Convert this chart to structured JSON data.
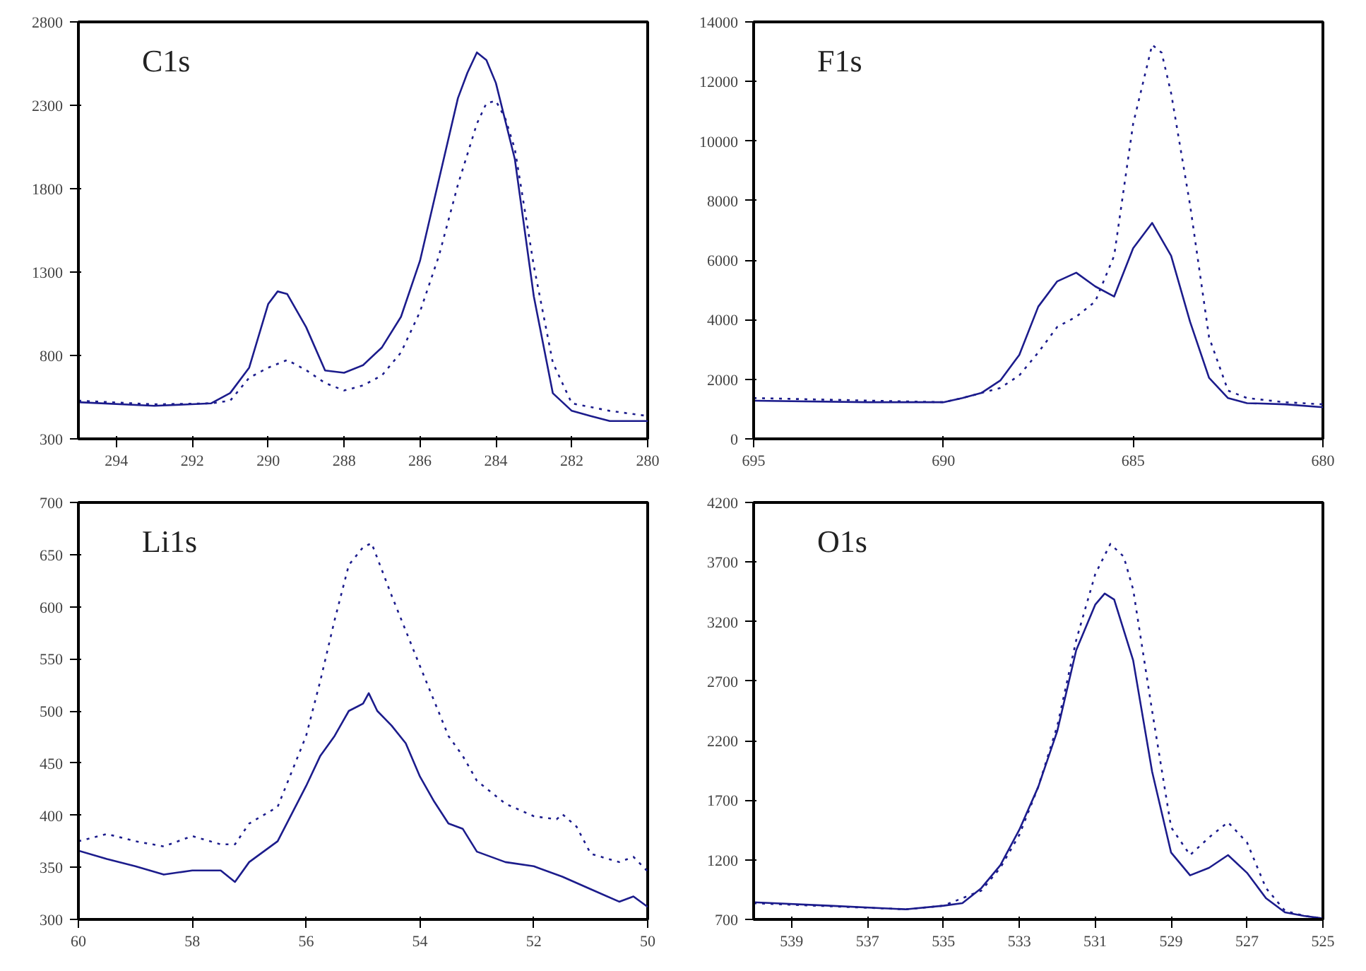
{
  "chart_data": [
    {
      "type": "line",
      "annotations": [
        "C1s"
      ],
      "xlim": [
        295,
        280
      ],
      "xticks": [
        294,
        292,
        290,
        288,
        286,
        284,
        282,
        280
      ],
      "ylim": [
        300,
        2800
      ],
      "yticks": [
        300,
        800,
        1300,
        1800,
        2300,
        2800
      ],
      "series": [
        {
          "color": "#1c1c8c",
          "line_style": "solid",
          "x": [
            295,
            293,
            291.5,
            291,
            290.5,
            290,
            289.75,
            289.5,
            289,
            288.5,
            288,
            287.5,
            287,
            286.5,
            286,
            285.5,
            285,
            284.75,
            284.5,
            284.25,
            284,
            283.5,
            283,
            282.5,
            282,
            281.5,
            281,
            280
          ],
          "values": [
            520,
            498,
            513,
            575,
            727,
            1108,
            1184,
            1169,
            970,
            710,
            696,
            742,
            849,
            1032,
            1367,
            1855,
            2343,
            2495,
            2617,
            2571,
            2434,
            1977,
            1154,
            574,
            468,
            437,
            407,
            407
          ]
        },
        {
          "color": "#1c1c8c",
          "line_style": "dotted",
          "x": [
            295,
            293,
            291.5,
            291,
            290.5,
            290,
            289.5,
            289,
            288.5,
            288,
            287.5,
            287,
            286.5,
            286,
            285.5,
            285,
            284.5,
            284.25,
            284,
            283.75,
            283.5,
            283,
            282.5,
            282,
            281,
            280
          ],
          "values": [
            529,
            507,
            513,
            529,
            666,
            727,
            773,
            712,
            635,
            590,
            620,
            681,
            818,
            1062,
            1398,
            1824,
            2190,
            2312,
            2327,
            2220,
            2038,
            1337,
            757,
            513,
            468,
            437
          ]
        }
      ]
    },
    {
      "type": "line",
      "annotations": [
        "F1s"
      ],
      "xlim": [
        695,
        680
      ],
      "xticks": [
        695,
        690,
        685,
        680
      ],
      "ylim": [
        0,
        14000
      ],
      "yticks": [
        0,
        2000,
        4000,
        6000,
        8000,
        10000,
        12000,
        14000
      ],
      "series": [
        {
          "color": "#1c1c8c",
          "line_style": "solid",
          "x": [
            695,
            692,
            690,
            689.5,
            689,
            688.5,
            688,
            687.5,
            687,
            686.5,
            686,
            685.5,
            685,
            684.5,
            684,
            683.5,
            683,
            682.5,
            682,
            681,
            680
          ],
          "values": [
            1280,
            1230,
            1230,
            1370,
            1540,
            1960,
            2820,
            4440,
            5290,
            5580,
            5120,
            4780,
            6400,
            7250,
            6150,
            3930,
            2050,
            1370,
            1200,
            1160,
            1060
          ]
        },
        {
          "color": "#1c1c8c",
          "line_style": "dotted",
          "x": [
            695,
            690,
            689.5,
            689,
            688.5,
            688,
            687.5,
            687,
            686.5,
            686,
            685.5,
            685,
            684.5,
            684.25,
            684,
            683.5,
            683,
            682.5,
            682,
            681,
            680
          ],
          "values": [
            1370,
            1230,
            1370,
            1540,
            1710,
            2130,
            2900,
            3760,
            4100,
            4610,
            6150,
            10580,
            13230,
            12970,
            11610,
            7850,
            3410,
            1620,
            1370,
            1230,
            1160
          ]
        }
      ]
    },
    {
      "type": "line",
      "annotations": [
        "Li1s"
      ],
      "xlim": [
        60,
        50
      ],
      "xticks": [
        60,
        58,
        56,
        54,
        52,
        50
      ],
      "ylim": [
        300,
        700
      ],
      "yticks": [
        300,
        350,
        400,
        450,
        500,
        550,
        600,
        650,
        700
      ],
      "series": [
        {
          "color": "#1c1c8c",
          "line_style": "solid",
          "x": [
            60,
            59.5,
            59,
            58.5,
            58,
            57.5,
            57.25,
            57,
            56.5,
            56,
            55.75,
            55.5,
            55.25,
            55,
            54.9,
            54.75,
            54.5,
            54.25,
            54,
            53.75,
            53.5,
            53.25,
            53,
            52.5,
            52,
            51.5,
            51,
            50.5,
            50.25,
            50
          ],
          "values": [
            366,
            358,
            351,
            343,
            347,
            347,
            336,
            355,
            375,
            428,
            457,
            476,
            500,
            507,
            517,
            500,
            486,
            469,
            437,
            413,
            392,
            387,
            365,
            355,
            351,
            341,
            329,
            317,
            322,
            312
          ]
        },
        {
          "color": "#1c1c8c",
          "line_style": "dotted",
          "x": [
            60,
            59.5,
            59,
            58.5,
            58,
            57.5,
            57.25,
            57,
            56.5,
            56,
            55.75,
            55.5,
            55.25,
            55,
            54.85,
            54.5,
            54,
            53.5,
            53.25,
            53,
            52.5,
            52,
            51.6,
            51.5,
            51.25,
            51,
            50.5,
            50.25,
            50
          ],
          "values": [
            375,
            382,
            375,
            370,
            380,
            372,
            372,
            392,
            408,
            476,
            529,
            587,
            640,
            657,
            661,
            611,
            543,
            476,
            457,
            433,
            411,
            399,
            396,
            401,
            389,
            363,
            355,
            360,
            346
          ]
        }
      ]
    },
    {
      "type": "line",
      "annotations": [
        "O1s"
      ],
      "xlim": [
        540,
        525
      ],
      "xticks": [
        539,
        537,
        535,
        533,
        531,
        529,
        527,
        525
      ],
      "ylim": [
        700,
        4200
      ],
      "yticks": [
        700,
        1200,
        1700,
        2200,
        2700,
        3200,
        3700,
        4200
      ],
      "series": [
        {
          "color": "#1c1c8c",
          "line_style": "solid",
          "x": [
            540,
            538,
            536,
            535,
            534.5,
            534,
            533.5,
            533,
            532.5,
            532,
            531.5,
            531,
            530.75,
            530.5,
            530,
            529.5,
            529,
            528.5,
            528,
            527.5,
            527,
            526.5,
            526,
            525.5,
            525
          ],
          "values": [
            844,
            815,
            785,
            815,
            836,
            963,
            1155,
            1452,
            1813,
            2280,
            2960,
            3342,
            3436,
            3385,
            2875,
            1940,
            1261,
            1070,
            1133,
            1240,
            1091,
            878,
            759,
            730,
            708
          ]
        },
        {
          "color": "#1c1c8c",
          "line_style": "dotted",
          "x": [
            540,
            536,
            535,
            534,
            533.5,
            533,
            532.5,
            532,
            531.5,
            531,
            530.6,
            530.25,
            530,
            529.5,
            529,
            528.5,
            528,
            527.5,
            527,
            526.5,
            526,
            525.5,
            525
          ],
          "values": [
            836,
            785,
            815,
            942,
            1133,
            1409,
            1813,
            2323,
            3045,
            3597,
            3852,
            3746,
            3470,
            2450,
            1473,
            1240,
            1388,
            1516,
            1346,
            963,
            772,
            730,
            708
          ]
        }
      ]
    }
  ]
}
